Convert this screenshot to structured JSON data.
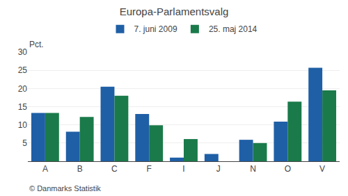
{
  "chart_data": {
    "type": "bar",
    "title": "Europa-Parlamentsvalg",
    "ylabel": "Pct.",
    "categories": [
      "A",
      "B",
      "C",
      "F",
      "I",
      "J",
      "N",
      "O",
      "V"
    ],
    "series": [
      {
        "name": "7. juni 2009",
        "color": "#1f5fa6",
        "values": [
          13.3,
          8.1,
          20.5,
          13.0,
          1.0,
          2.0,
          5.9,
          10.9,
          25.7
        ]
      },
      {
        "name": "25. maj 2014",
        "color": "#1a7a4a",
        "values": [
          13.3,
          12.2,
          18.0,
          9.9,
          6.1,
          0.0,
          5.0,
          16.4,
          19.5
        ]
      }
    ],
    "ylim": [
      0,
      30
    ],
    "yticks": [
      5,
      10,
      15,
      20,
      25,
      30
    ],
    "grid": true,
    "legend": "top",
    "annotations": [
      "© Danmarks Statistik"
    ]
  }
}
